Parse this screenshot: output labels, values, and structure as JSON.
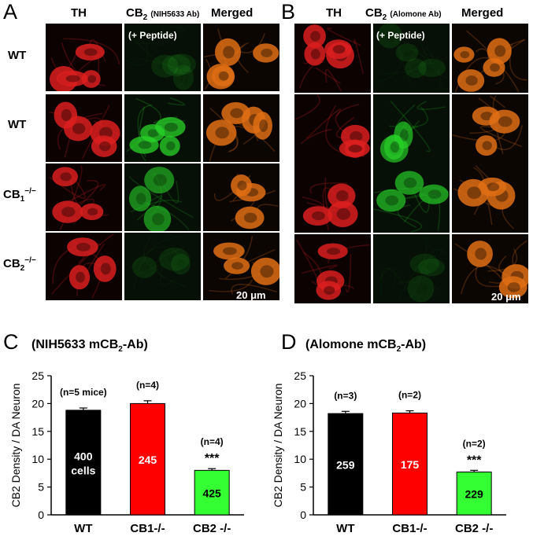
{
  "panels": {
    "A": {
      "letter": "A",
      "headers": {
        "th": "TH",
        "cb2": "CB",
        "cb2_sub": "2",
        "cb2_ab": "(NIH5633 Ab)",
        "merged": "Merged"
      },
      "peptide": "(+ Peptide)",
      "rows": [
        {
          "label": "WT",
          "sup": ""
        },
        {
          "label": "WT",
          "sup": ""
        },
        {
          "label": "CB",
          "sub": "1",
          "sup": "−/−"
        },
        {
          "label": "CB",
          "sub": "2",
          "sup": "−/−"
        }
      ],
      "scale": "20 μm"
    },
    "B": {
      "letter": "B",
      "headers": {
        "th": "TH",
        "cb2": "CB",
        "cb2_sub": "2",
        "cb2_ab": "(Alomone Ab)",
        "merged": "Merged"
      },
      "peptide": "(+ Peptide)",
      "scale": "20 μm"
    },
    "C": {
      "letter": "C",
      "title": "(NIH5633 mCB",
      "title_sub": "2",
      "title_end": "-Ab)"
    },
    "D": {
      "letter": "D",
      "title": "(Alomone mCB",
      "title_sub": "2",
      "title_end": "-Ab)"
    }
  },
  "colors": {
    "red": "#e11a1a",
    "green": "#22cc22",
    "black": "#000000"
  },
  "chart_data": [
    {
      "type": "bar",
      "title": "(NIH5633 mCB2-Ab)",
      "ylabel": "CB2 Density / DA Neuron",
      "ylim": [
        0,
        25
      ],
      "yticks": [
        0,
        5,
        10,
        15,
        20,
        25
      ],
      "categories": [
        "WT",
        "CB1-/-",
        "CB2 -/-"
      ],
      "values": [
        18.8,
        20.0,
        8.0
      ],
      "errors": [
        0.4,
        0.5,
        0.3
      ],
      "bar_colors": [
        "#000000",
        "#ff0000",
        "#33ff33"
      ],
      "n_labels": [
        "(n=5 mice)",
        "(n=4)",
        "(n=4)"
      ],
      "inner_labels": [
        "400 cells",
        "245",
        "425"
      ],
      "significance": [
        "",
        "",
        "***"
      ]
    },
    {
      "type": "bar",
      "title": "(Alomone mCB2-Ab)",
      "ylabel": "CB2 Density / DA Neuron",
      "ylim": [
        0,
        25
      ],
      "yticks": [
        0,
        5,
        10,
        15,
        20,
        25
      ],
      "categories": [
        "WT",
        "CB1-/-",
        "CB2 -/-"
      ],
      "values": [
        18.2,
        18.3,
        7.7
      ],
      "errors": [
        0.4,
        0.4,
        0.3
      ],
      "bar_colors": [
        "#000000",
        "#ff0000",
        "#33ff33"
      ],
      "n_labels": [
        "(n=3)",
        "(n=2)",
        "(n=2)"
      ],
      "inner_labels": [
        "259",
        "175",
        "229"
      ],
      "significance": [
        "",
        "",
        "***"
      ]
    }
  ]
}
